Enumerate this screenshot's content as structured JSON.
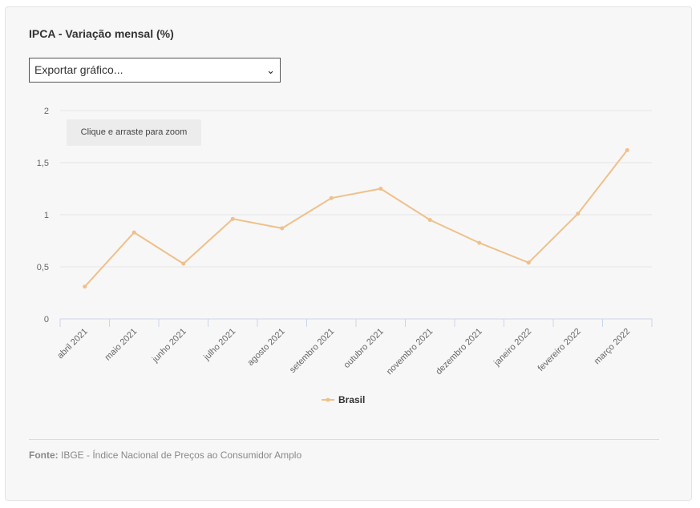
{
  "title": "IPCA - Variação mensal (%)",
  "export": {
    "selected": "Exportar gráfico..."
  },
  "zoom_hint": "Clique e arraste para zoom",
  "colors": {
    "series": "#efc08a",
    "grid": "#e6e6e6",
    "axis": "#ccd6eb"
  },
  "chart_data": {
    "type": "line",
    "title": "IPCA - Variação mensal (%)",
    "xlabel": "",
    "ylabel": "",
    "categories": [
      "abril 2021",
      "maio 2021",
      "junho 2021",
      "julho 2021",
      "agosto 2021",
      "setembro 2021",
      "outubro 2021",
      "novembro 2021",
      "dezembro 2021",
      "janeiro 2022",
      "fevereiro 2022",
      "março 2022"
    ],
    "series": [
      {
        "name": "Brasil",
        "values": [
          0.31,
          0.83,
          0.53,
          0.96,
          0.87,
          1.16,
          1.25,
          0.95,
          0.73,
          0.54,
          1.01,
          1.62
        ]
      }
    ],
    "ylim": [
      0,
      2
    ],
    "yticks": [
      "0",
      "0,5",
      "1",
      "1,5",
      "2"
    ],
    "grid": true,
    "legend": "bottom-center"
  },
  "footer": {
    "source_label": "Fonte:",
    "source_text": "IBGE - Índice Nacional de Preços ao Consumidor Amplo"
  }
}
